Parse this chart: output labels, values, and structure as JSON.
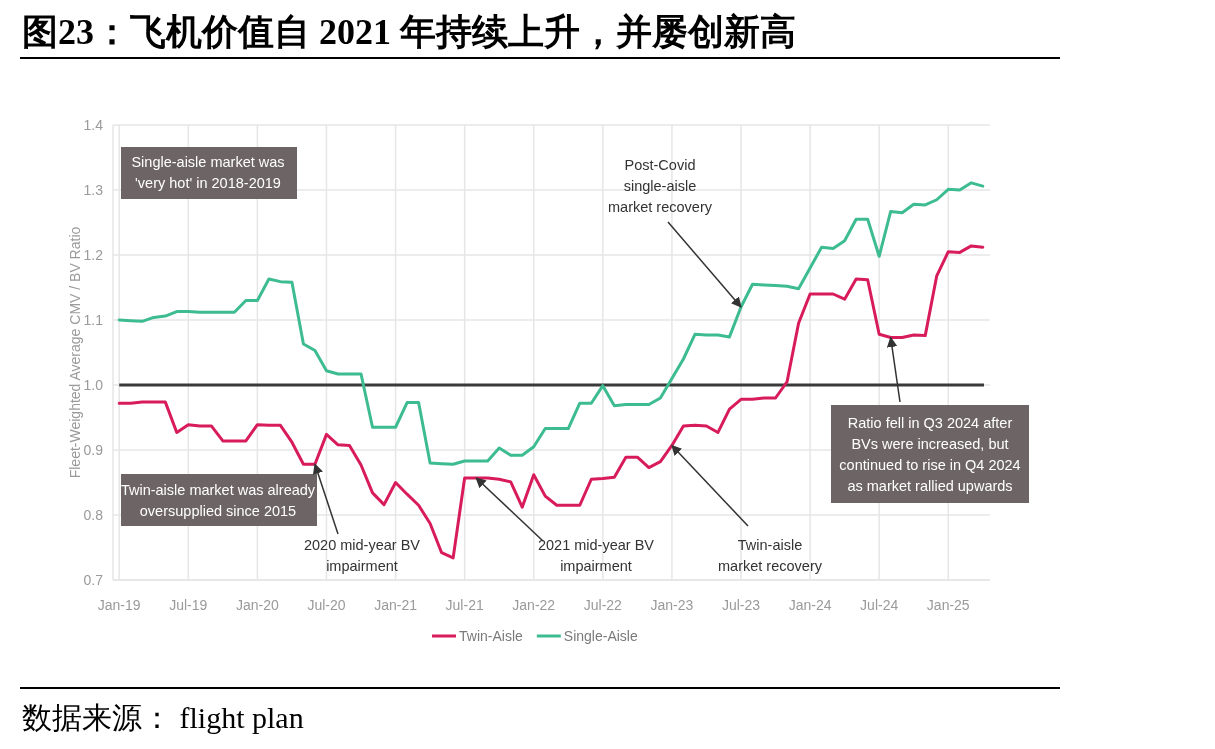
{
  "chart_data": {
    "type": "line",
    "title": "图23：飞机价值自 2021 年持续上升，并屡创新高",
    "ylabel": "Fleet-Weighted Average CMV / BV Ratio",
    "x": [
      "2019-01",
      "2019-02",
      "2019-03",
      "2019-04",
      "2019-05",
      "2019-06",
      "2019-07",
      "2019-08",
      "2019-09",
      "2019-10",
      "2019-11",
      "2019-12",
      "2020-01",
      "2020-02",
      "2020-03",
      "2020-04",
      "2020-05",
      "2020-06",
      "2020-07",
      "2020-08",
      "2020-09",
      "2020-10",
      "2020-11",
      "2020-12",
      "2021-01",
      "2021-02",
      "2021-03",
      "2021-04",
      "2021-05",
      "2021-06",
      "2021-07",
      "2021-08",
      "2021-09",
      "2021-10",
      "2021-11",
      "2021-12",
      "2022-01",
      "2022-02",
      "2022-03",
      "2022-04",
      "2022-05",
      "2022-06",
      "2022-07",
      "2022-08",
      "2022-09",
      "2022-10",
      "2022-11",
      "2022-12",
      "2023-01",
      "2023-02",
      "2023-03",
      "2023-04",
      "2023-05",
      "2023-06",
      "2023-07",
      "2023-08",
      "2023-09",
      "2023-10",
      "2023-11",
      "2023-12",
      "2024-01",
      "2024-02",
      "2024-03",
      "2024-04",
      "2024-05",
      "2024-06",
      "2024-07",
      "2024-08",
      "2024-09",
      "2024-10",
      "2024-11",
      "2024-12",
      "2025-01",
      "2025-02",
      "2025-03",
      "2025-04"
    ],
    "series": [
      {
        "name": "Twin-Aisle",
        "color": "#d81b5a",
        "values": [
          0.972,
          0.972,
          0.974,
          0.974,
          0.974,
          0.927,
          0.939,
          0.937,
          0.937,
          0.914,
          0.914,
          0.914,
          0.939,
          0.938,
          0.938,
          0.912,
          0.878,
          0.878,
          0.924,
          0.908,
          0.907,
          0.877,
          0.834,
          0.816,
          0.85,
          0.832,
          0.815,
          0.787,
          0.742,
          0.734,
          0.857,
          0.857,
          0.857,
          0.855,
          0.851,
          0.812,
          0.862,
          0.829,
          0.815,
          0.815,
          0.815,
          0.855,
          0.856,
          0.858,
          0.889,
          0.889,
          0.873,
          0.882,
          0.907,
          0.937,
          0.938,
          0.937,
          0.927,
          0.963,
          0.978,
          0.978,
          0.98,
          0.98,
          1.005,
          1.095,
          1.14,
          1.14,
          1.14,
          1.132,
          1.163,
          1.162,
          1.078,
          1.073,
          1.073,
          1.077,
          1.076,
          1.168,
          1.205,
          1.204,
          1.214,
          1.212
        ]
      },
      {
        "name": "Single-Aisle",
        "color": "#3dbb91",
        "values": [
          1.1,
          1.099,
          1.098,
          1.104,
          1.106,
          1.113,
          1.113,
          1.112,
          1.112,
          1.112,
          1.112,
          1.13,
          1.13,
          1.163,
          1.159,
          1.158,
          1.063,
          1.053,
          1.022,
          1.017,
          1.017,
          1.017,
          0.935,
          0.935,
          0.935,
          0.973,
          0.973,
          0.88,
          0.879,
          0.878,
          0.883,
          0.883,
          0.883,
          0.903,
          0.892,
          0.892,
          0.905,
          0.933,
          0.933,
          0.933,
          0.972,
          0.972,
          0.999,
          0.968,
          0.97,
          0.97,
          0.97,
          0.98,
          1.01,
          1.04,
          1.078,
          1.077,
          1.077,
          1.074,
          1.12,
          1.155,
          1.154,
          1.153,
          1.152,
          1.148,
          1.18,
          1.212,
          1.21,
          1.222,
          1.255,
          1.255,
          1.198,
          1.267,
          1.265,
          1.278,
          1.277,
          1.285,
          1.301,
          1.3,
          1.311,
          1.306
        ]
      }
    ],
    "xlim": [
      "2018-12-15",
      "2025-04-20"
    ],
    "xticks": [
      {
        "value": "2019-01",
        "label": "Jan-19"
      },
      {
        "value": "2019-07",
        "label": "Jul-19"
      },
      {
        "value": "2020-01",
        "label": "Jan-20"
      },
      {
        "value": "2020-07",
        "label": "Jul-20"
      },
      {
        "value": "2021-01",
        "label": "Jan-21"
      },
      {
        "value": "2021-07",
        "label": "Jul-21"
      },
      {
        "value": "2022-01",
        "label": "Jan-22"
      },
      {
        "value": "2022-07",
        "label": "Jul-22"
      },
      {
        "value": "2023-01",
        "label": "Jan-23"
      },
      {
        "value": "2023-07",
        "label": "Jul-23"
      },
      {
        "value": "2024-01",
        "label": "Jan-24"
      },
      {
        "value": "2024-07",
        "label": "Jul-24"
      },
      {
        "value": "2025-01",
        "label": "Jan-25"
      }
    ],
    "ylim": [
      0.7,
      1.4
    ],
    "yticks": [
      0.7,
      0.8,
      0.9,
      {
        "value": 1,
        "label": "1.0"
      },
      1.1,
      1.2,
      1.3,
      1.4
    ],
    "ref_lines": [
      {
        "axis": "y",
        "value": 1,
        "color": "#3a3a3a"
      }
    ],
    "grid": true,
    "legend": "bottom",
    "annotations": [
      "Single-aisle market was\n'very hot' in 2018-2019",
      "Twin-aisle market was already\noversupplied since 2015",
      {
        "text": "2020 mid-year BV\nimpairment",
        "x": "2020-06",
        "y": 0.878
      },
      {
        "text": "2021 mid-year BV\nimpairment",
        "x": "2021-08",
        "y": 0.857
      },
      {
        "text": "Post-Covid\nsingle-aisle\nmarket recovery",
        "x": "2023-07",
        "y": 1.12
      },
      {
        "text": "Twin-aisle\nmarket recovery",
        "x": "2023-01",
        "y": 0.907
      },
      {
        "text": "Ratio fell in Q3 2024 after\nBVs were increased, but\ncontinued to rise in Q4 2024\nas market rallied upwards",
        "x": "2024-08",
        "y": 1.073
      },
      "数据来源： flight plan"
    ]
  }
}
